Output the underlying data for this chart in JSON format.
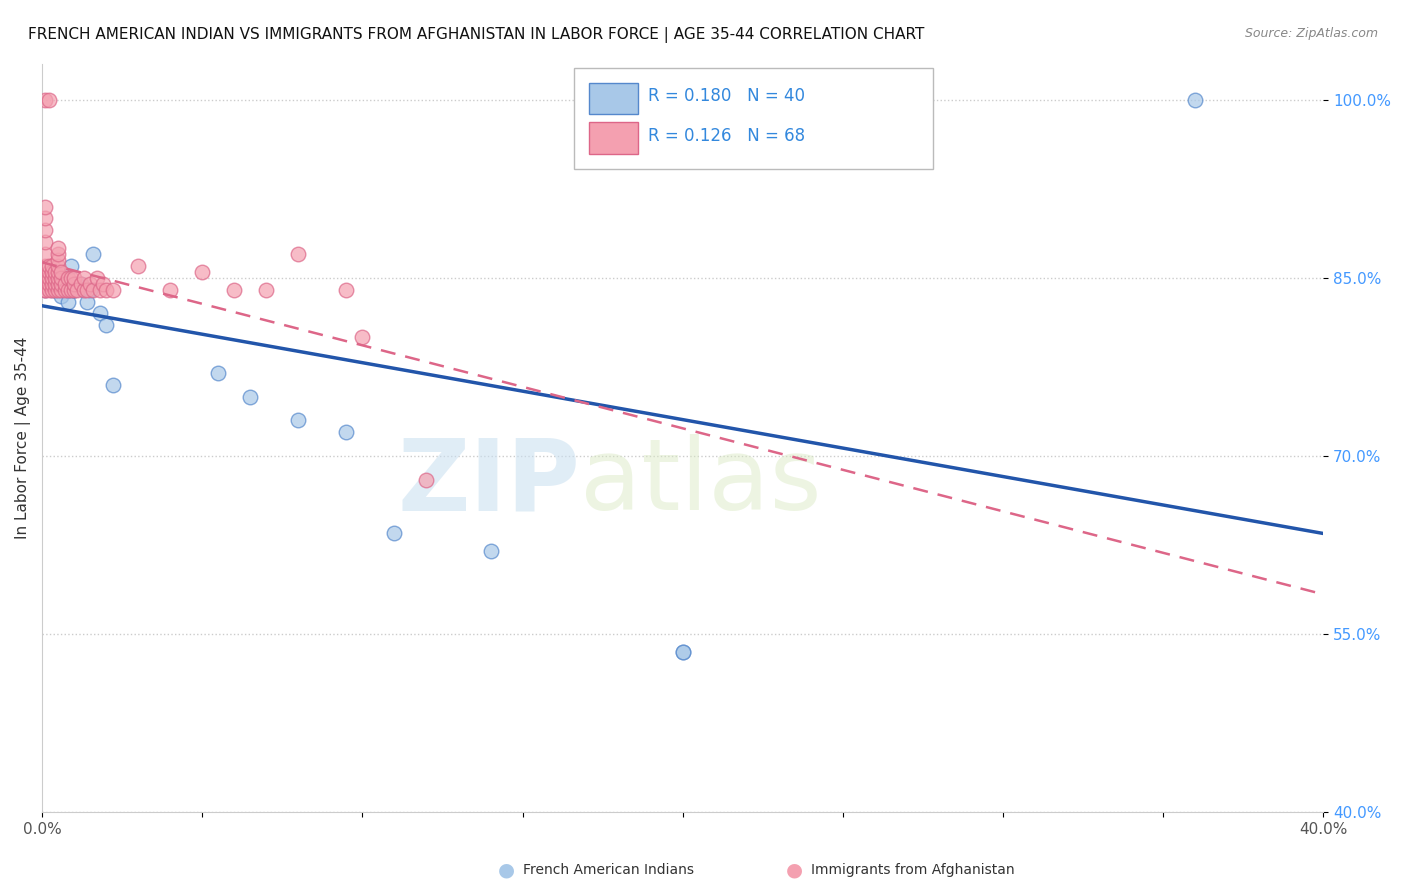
{
  "title": "FRENCH AMERICAN INDIAN VS IMMIGRANTS FROM AFGHANISTAN IN LABOR FORCE | AGE 35-44 CORRELATION CHART",
  "source": "Source: ZipAtlas.com",
  "ylabel": "In Labor Force | Age 35-44",
  "blue_label": "French American Indians",
  "pink_label": "Immigrants from Afghanistan",
  "blue_R": 0.18,
  "blue_N": 40,
  "pink_R": 0.126,
  "pink_N": 68,
  "blue_color": "#a8c8e8",
  "pink_color": "#f4a0b0",
  "blue_edge_color": "#5588cc",
  "pink_edge_color": "#dd6688",
  "blue_line_color": "#2255aa",
  "pink_line_color": "#dd6688",
  "xmin": 0.0,
  "xmax": 0.4,
  "ymin": 0.4,
  "ymax": 1.03,
  "yticks": [
    0.4,
    0.55,
    0.7,
    0.85,
    1.0
  ],
  "ytick_labels": [
    "40.0%",
    "55.0%",
    "70.0%",
    "85.0%",
    "100.0%"
  ],
  "xticks": [
    0.0,
    0.05,
    0.1,
    0.15,
    0.2,
    0.25,
    0.3,
    0.35,
    0.4
  ],
  "xtick_labels": [
    "0.0%",
    "",
    "",
    "",
    "",
    "",
    "",
    "",
    "40.0%"
  ],
  "watermark_zip": "ZIP",
  "watermark_atlas": "atlas",
  "blue_scatter_x": [
    0.001,
    0.002,
    0.003,
    0.003,
    0.004,
    0.004,
    0.005,
    0.005,
    0.005,
    0.005,
    0.006,
    0.006,
    0.007,
    0.007,
    0.008,
    0.008,
    0.008,
    0.009,
    0.009,
    0.01,
    0.01,
    0.01,
    0.011,
    0.012,
    0.013,
    0.014,
    0.015,
    0.016,
    0.018,
    0.02,
    0.022,
    0.055,
    0.065,
    0.08,
    0.095,
    0.11,
    0.14,
    0.2,
    0.2,
    0.36
  ],
  "blue_scatter_y": [
    0.84,
    0.845,
    0.84,
    0.85,
    0.84,
    0.855,
    0.84,
    0.85,
    0.84,
    0.85,
    0.84,
    0.835,
    0.845,
    0.84,
    0.84,
    0.83,
    0.84,
    0.86,
    0.84,
    0.845,
    0.84,
    0.84,
    0.845,
    0.845,
    0.84,
    0.83,
    0.84,
    0.87,
    0.82,
    0.81,
    0.76,
    0.77,
    0.75,
    0.73,
    0.72,
    0.635,
    0.62,
    0.535,
    0.535,
    1.0
  ],
  "pink_scatter_x": [
    0.001,
    0.001,
    0.001,
    0.001,
    0.001,
    0.001,
    0.001,
    0.001,
    0.001,
    0.001,
    0.001,
    0.002,
    0.002,
    0.002,
    0.002,
    0.002,
    0.002,
    0.003,
    0.003,
    0.003,
    0.003,
    0.003,
    0.004,
    0.004,
    0.004,
    0.004,
    0.005,
    0.005,
    0.005,
    0.005,
    0.005,
    0.005,
    0.005,
    0.005,
    0.006,
    0.006,
    0.006,
    0.006,
    0.007,
    0.007,
    0.008,
    0.008,
    0.009,
    0.009,
    0.01,
    0.01,
    0.01,
    0.011,
    0.012,
    0.013,
    0.013,
    0.014,
    0.015,
    0.016,
    0.017,
    0.018,
    0.019,
    0.02,
    0.022,
    0.03,
    0.04,
    0.05,
    0.06,
    0.07,
    0.08,
    0.095,
    0.1,
    0.12
  ],
  "pink_scatter_y": [
    0.84,
    0.845,
    0.84,
    0.85,
    0.86,
    0.87,
    0.88,
    0.89,
    0.9,
    0.91,
    1.0,
    0.84,
    0.845,
    0.85,
    0.855,
    0.86,
    1.0,
    0.84,
    0.845,
    0.85,
    0.855,
    0.86,
    0.84,
    0.845,
    0.85,
    0.855,
    0.84,
    0.845,
    0.85,
    0.855,
    0.86,
    0.865,
    0.87,
    0.875,
    0.84,
    0.845,
    0.85,
    0.855,
    0.84,
    0.845,
    0.84,
    0.85,
    0.84,
    0.85,
    0.84,
    0.845,
    0.85,
    0.84,
    0.845,
    0.84,
    0.85,
    0.84,
    0.845,
    0.84,
    0.85,
    0.84,
    0.845,
    0.84,
    0.84,
    0.86,
    0.84,
    0.855,
    0.84,
    0.84,
    0.87,
    0.84,
    0.8,
    0.68
  ]
}
